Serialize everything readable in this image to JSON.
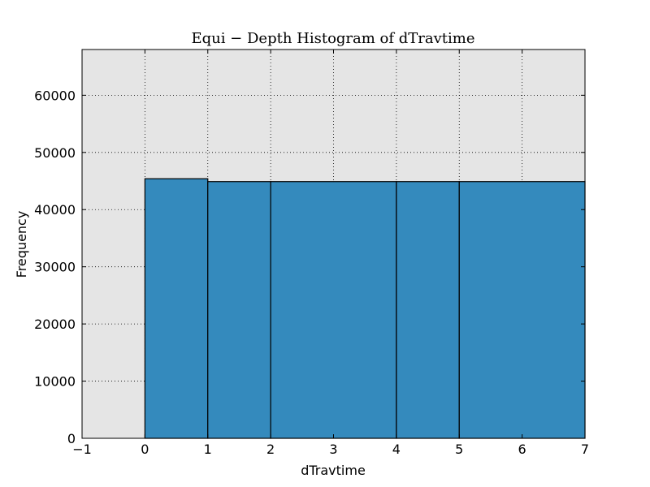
{
  "chart_data": {
    "type": "bar",
    "title": "Equi − Depth Histogram of dTravtime",
    "xlabel": "dTravtime",
    "ylabel": "Frequency",
    "xlim": [
      -1,
      7
    ],
    "ylim": [
      0,
      68000
    ],
    "xticks": [
      -1,
      0,
      1,
      2,
      3,
      4,
      5,
      6,
      7
    ],
    "xtick_labels": [
      "−1",
      "0",
      "1",
      "2",
      "3",
      "4",
      "5",
      "6",
      "7"
    ],
    "yticks": [
      0,
      10000,
      20000,
      30000,
      40000,
      50000,
      60000
    ],
    "ytick_labels": [
      "0",
      "10000",
      "20000",
      "30000",
      "40000",
      "50000",
      "60000"
    ],
    "bins": [
      {
        "x0": 0,
        "x1": 1,
        "value": 45400
      },
      {
        "x0": 1,
        "x1": 2,
        "value": 44900
      },
      {
        "x0": 2,
        "x1": 4,
        "value": 44900
      },
      {
        "x0": 4,
        "x1": 5,
        "value": 44900
      },
      {
        "x0": 5,
        "x1": 7,
        "value": 44900
      }
    ],
    "grid": true,
    "colors": {
      "bar": "#348abd",
      "plot_background": "#e5e5e5",
      "edge": "#000000"
    }
  }
}
